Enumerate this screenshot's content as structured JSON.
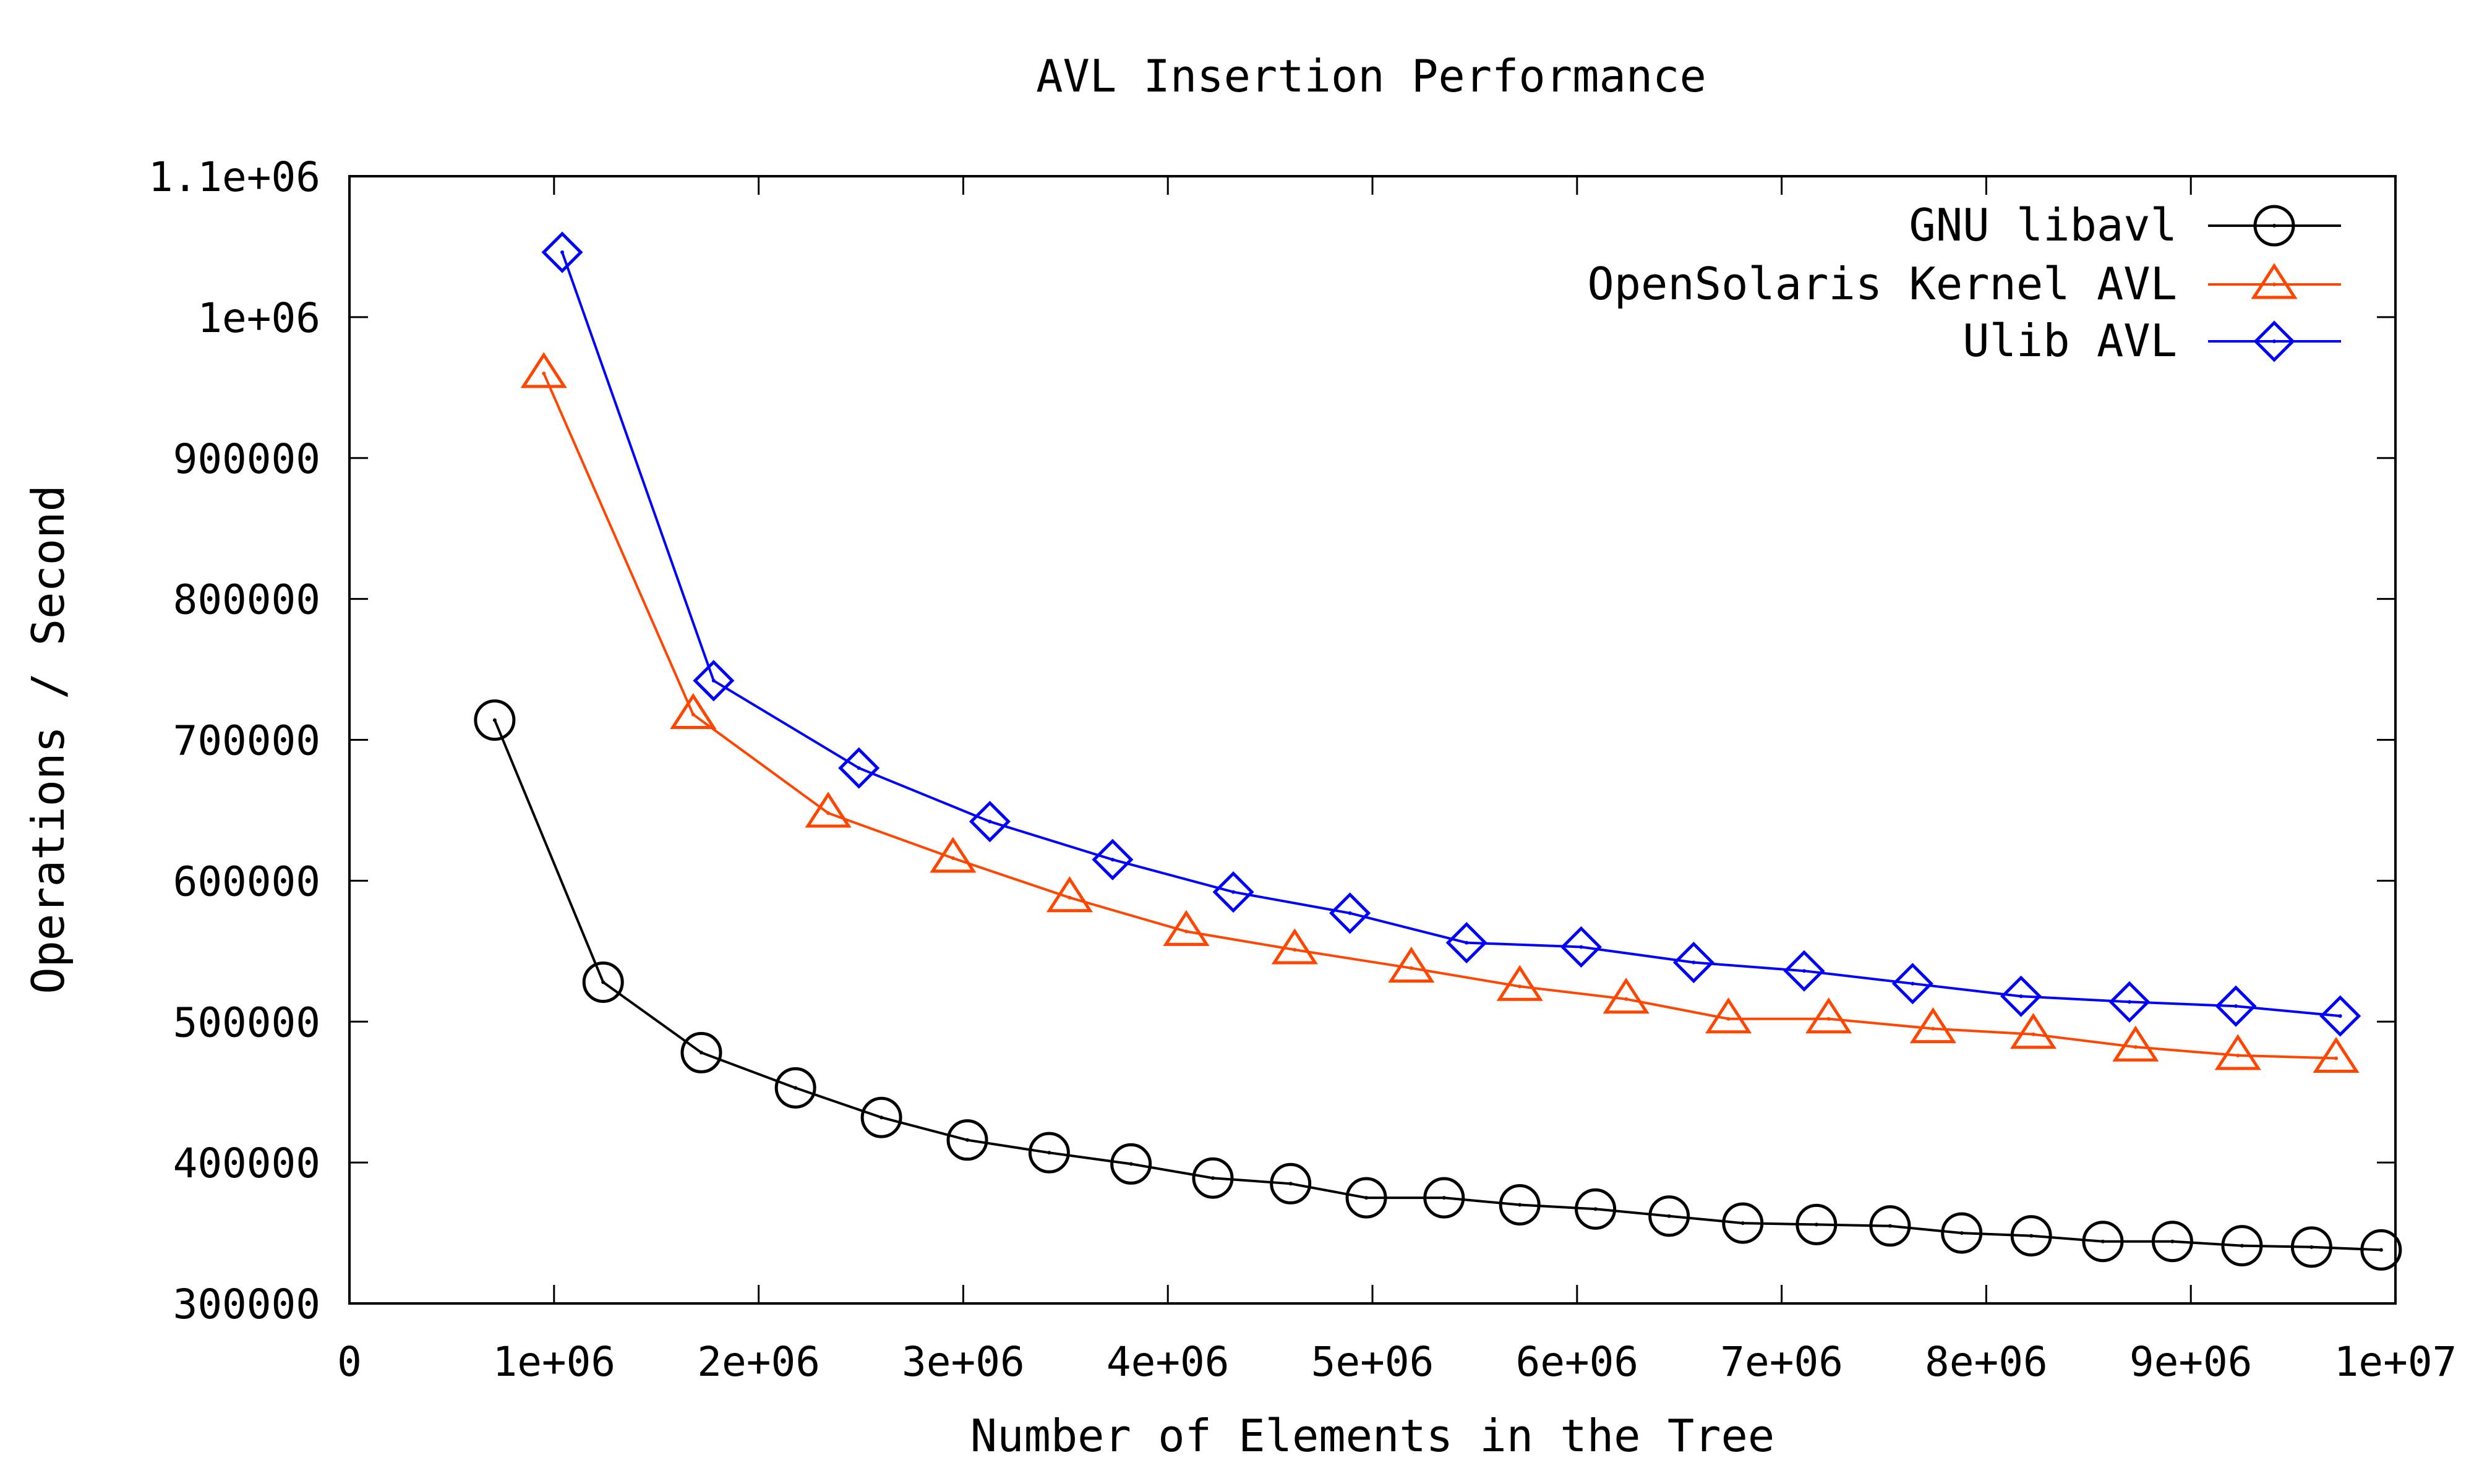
{
  "chart_data": {
    "type": "line",
    "title": "AVL Insertion Performance",
    "xlabel": "Number of Elements in the Tree",
    "ylabel": "Operations / Second",
    "xlim": [
      0,
      10000000
    ],
    "ylim": [
      300000,
      1100000
    ],
    "x_ticks": [
      0,
      1000000,
      2000000,
      3000000,
      4000000,
      5000000,
      6000000,
      7000000,
      8000000,
      9000000,
      10000000
    ],
    "x_tick_labels": [
      "0",
      "1e+06",
      "2e+06",
      "3e+06",
      "4e+06",
      "5e+06",
      "6e+06",
      "7e+06",
      "8e+06",
      "9e+06",
      "1e+07"
    ],
    "y_ticks": [
      300000,
      400000,
      500000,
      600000,
      700000,
      800000,
      900000,
      1000000,
      1100000
    ],
    "y_tick_labels": [
      "300000",
      "400000",
      "500000",
      "600000",
      "700000",
      "800000",
      "900000",
      "1e+06",
      "1.1e+06"
    ],
    "grid": false,
    "legend_position": "top-right",
    "series": [
      {
        "name": "GNU libavl",
        "color": "#000000",
        "marker": "circle",
        "x": [
          710000,
          1240000,
          1720000,
          2180000,
          2600000,
          3020000,
          3420000,
          3820000,
          4220000,
          4600000,
          4970000,
          5350000,
          5720000,
          6090000,
          6450000,
          6810000,
          7170000,
          7530000,
          7880000,
          8220000,
          8570000,
          8910000,
          9250000,
          9590000,
          9930000
        ],
        "y": [
          714000,
          528000,
          478000,
          453000,
          432000,
          416000,
          407000,
          399000,
          389000,
          385000,
          375000,
          375000,
          370000,
          367000,
          362000,
          357000,
          356000,
          355000,
          350000,
          348000,
          344000,
          344000,
          341000,
          340000,
          338000
        ]
      },
      {
        "name": "OpenSolaris Kernel AVL",
        "color": "#ff4500",
        "marker": "triangle",
        "x": [
          950000,
          1680000,
          2340000,
          2950000,
          3520000,
          4090000,
          4620000,
          5190000,
          5720000,
          6240000,
          6740000,
          7230000,
          7740000,
          8230000,
          8730000,
          9230000,
          9710000
        ],
        "y": [
          960000,
          718000,
          648000,
          616000,
          588000,
          564000,
          551000,
          538000,
          525000,
          516000,
          502000,
          502000,
          495000,
          491000,
          482000,
          476000,
          474000
        ]
      },
      {
        "name": "Ulib AVL",
        "color": "#0000ff",
        "marker": "diamond",
        "x": [
          1040000,
          1780000,
          2490000,
          3130000,
          3730000,
          4320000,
          4890000,
          5460000,
          6020000,
          6570000,
          7110000,
          7640000,
          8170000,
          8700000,
          9220000,
          9730000
        ],
        "y": [
          1046000,
          742000,
          680000,
          642000,
          615000,
          592000,
          577000,
          556000,
          553000,
          542000,
          536000,
          527000,
          518000,
          514000,
          511000,
          504000
        ]
      }
    ]
  }
}
